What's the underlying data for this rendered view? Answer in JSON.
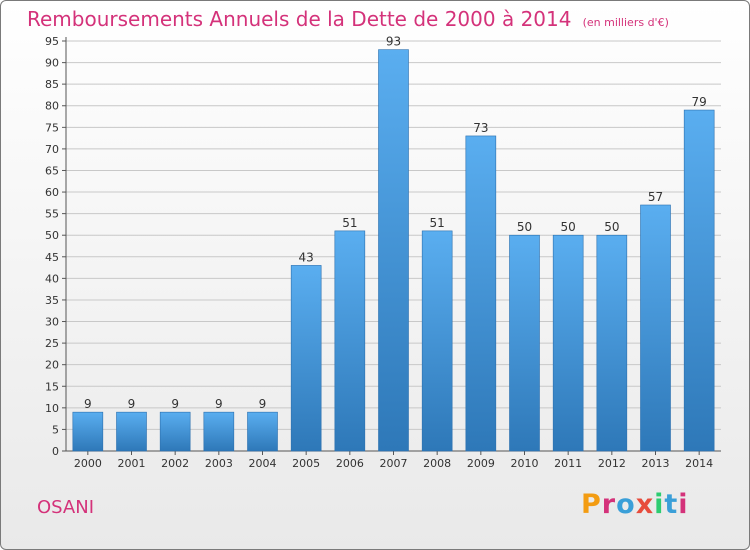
{
  "header": {
    "title": "Remboursements Annuels de la Dette de 2000 à 2014",
    "unit": "(en milliers d'€)"
  },
  "footer": {
    "commune": "OSANI",
    "logo_text": "Proxiti",
    "logo_colors": [
      "#f39c12",
      "#d4327a",
      "#3a9fd8",
      "#e74c3c",
      "#2ecc71",
      "#3a9fd8",
      "#d4327a"
    ]
  },
  "colors": {
    "accent": "#d4327a",
    "bar_top": "#5aaef0",
    "bar_bottom": "#2e78b8"
  },
  "chart_data": {
    "type": "bar",
    "title": "Remboursements Annuels de la Dette de 2000 à 2014",
    "subtitle": "(en milliers d'€)",
    "categories": [
      "2000",
      "2001",
      "2002",
      "2003",
      "2004",
      "2005",
      "2006",
      "2007",
      "2008",
      "2009",
      "2010",
      "2011",
      "2012",
      "2013",
      "2014"
    ],
    "values": [
      9,
      9,
      9,
      9,
      9,
      43,
      51,
      93,
      51,
      73,
      50,
      50,
      50,
      57,
      79
    ],
    "ylim": [
      0,
      95
    ],
    "yticks": [
      0,
      5,
      10,
      15,
      20,
      25,
      30,
      35,
      40,
      45,
      50,
      55,
      60,
      65,
      70,
      75,
      80,
      85,
      90,
      95
    ],
    "grid": true,
    "legend": "none"
  }
}
